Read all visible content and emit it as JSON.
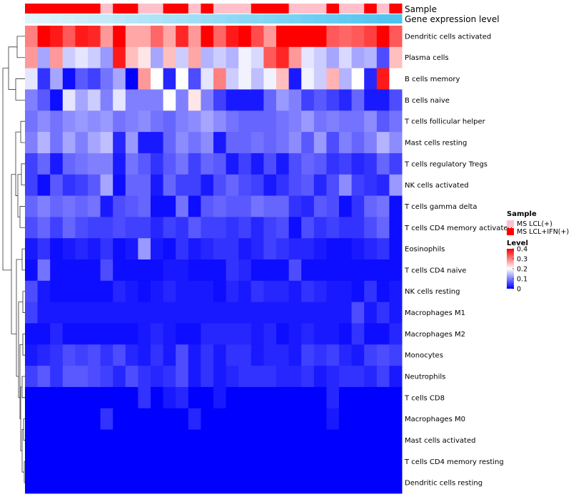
{
  "chart_data": {
    "type": "heatmap",
    "title": "",
    "rows": [
      "Dendritic cells activated",
      "Plasma cells",
      "B cells memory",
      "B cells naive",
      "T cells follicular helper",
      "Mast cells resting",
      "T cells regulatory  Tregs",
      "NK cells activated",
      "T cells gamma delta",
      "T cells CD4 memory activated",
      "Eosinophils",
      "T cells CD4 naive",
      "NK cells resting",
      "Macrophages M1",
      "Macrophages M2",
      "Monocytes",
      "Neutrophils",
      "T cells CD8",
      "Macrophages M0",
      "Mast cells activated",
      "T cells CD4 memory resting",
      "Dendritic cells resting"
    ],
    "column_count": 30,
    "column_annotations": [
      {
        "name": "Sample",
        "values": [
          "MS LCL+IFN(+)",
          "MS LCL+IFN(+)",
          "MS LCL+IFN(+)",
          "MS LCL+IFN(+)",
          "MS LCL+IFN(+)",
          "MS LCL+IFN(+)",
          "MS LCL(+)",
          "MS LCL+IFN(+)",
          "MS LCL+IFN(+)",
          "MS LCL(+)",
          "MS LCL(+)",
          "MS LCL+IFN(+)",
          "MS LCL+IFN(+)",
          "MS LCL(+)",
          "MS LCL+IFN(+)",
          "MS LCL(+)",
          "MS LCL(+)",
          "MS LCL(+)",
          "MS LCL+IFN(+)",
          "MS LCL+IFN(+)",
          "MS LCL+IFN(+)",
          "MS LCL(+)",
          "MS LCL(+)",
          "MS LCL(+)",
          "MS LCL+IFN(+)",
          "MS LCL(+)",
          "MS LCL(+)",
          "MS LCL+IFN(+)",
          "MS LCL(+)",
          "MS LCL+IFN(+)"
        ]
      },
      {
        "name": "Gene expression level",
        "values": [
          0.0,
          0.03,
          0.07,
          0.1,
          0.14,
          0.17,
          0.21,
          0.24,
          0.28,
          0.31,
          0.34,
          0.38,
          0.41,
          0.45,
          0.48,
          0.52,
          0.55,
          0.59,
          0.62,
          0.66,
          0.69,
          0.72,
          0.76,
          0.79,
          0.83,
          0.86,
          0.9,
          0.93,
          0.97,
          1.0
        ]
      }
    ],
    "values": [
      [
        0.3,
        0.4,
        0.38,
        0.33,
        0.38,
        0.37,
        0.28,
        0.4,
        0.27,
        0.27,
        0.32,
        0.27,
        0.37,
        0.28,
        0.4,
        0.32,
        0.38,
        0.4,
        0.34,
        0.28,
        0.4,
        0.4,
        0.4,
        0.4,
        0.33,
        0.32,
        0.33,
        0.35,
        0.4,
        0.33
      ],
      [
        0.28,
        0.13,
        0.28,
        0.16,
        0.18,
        0.16,
        0.12,
        0.38,
        0.25,
        0.22,
        0.13,
        0.25,
        0.16,
        0.27,
        0.14,
        0.16,
        0.14,
        0.19,
        0.17,
        0.33,
        0.37,
        0.28,
        0.18,
        0.16,
        0.13,
        0.17,
        0.13,
        0.14,
        0.06,
        0.25
      ],
      [
        0.18,
        0.04,
        0.13,
        0.01,
        0.07,
        0.05,
        0.09,
        0.13,
        0.0,
        0.28,
        0.2,
        0.03,
        0.2,
        0.06,
        0.18,
        0.3,
        0.16,
        0.19,
        0.15,
        0.19,
        0.25,
        0.02,
        0.19,
        0.16,
        0.26,
        0.14,
        0.2,
        0.03,
        0.38,
        0.2
      ],
      [
        0.1,
        0.07,
        0.01,
        0.18,
        0.13,
        0.16,
        0.1,
        0.18,
        0.1,
        0.1,
        0.1,
        0.2,
        0.1,
        0.22,
        0.1,
        0.05,
        0.02,
        0.02,
        0.02,
        0.08,
        0.12,
        0.1,
        0.05,
        0.07,
        0.05,
        0.03,
        0.08,
        0.02,
        0.02,
        0.06
      ],
      [
        0.09,
        0.11,
        0.09,
        0.11,
        0.12,
        0.11,
        0.12,
        0.09,
        0.1,
        0.11,
        0.09,
        0.08,
        0.1,
        0.11,
        0.13,
        0.11,
        0.09,
        0.08,
        0.08,
        0.08,
        0.09,
        0.1,
        0.12,
        0.09,
        0.1,
        0.09,
        0.09,
        0.11,
        0.07,
        0.09
      ],
      [
        0.1,
        0.14,
        0.09,
        0.13,
        0.1,
        0.13,
        0.15,
        0.03,
        0.12,
        0.02,
        0.02,
        0.08,
        0.11,
        0.09,
        0.11,
        0.02,
        0.08,
        0.08,
        0.09,
        0.08,
        0.09,
        0.11,
        0.07,
        0.12,
        0.06,
        0.1,
        0.08,
        0.1,
        0.14,
        0.11
      ],
      [
        0.05,
        0.08,
        0.02,
        0.08,
        0.09,
        0.1,
        0.1,
        0.02,
        0.09,
        0.07,
        0.04,
        0.07,
        0.09,
        0.05,
        0.08,
        0.07,
        0.02,
        0.05,
        0.02,
        0.06,
        0.02,
        0.06,
        0.08,
        0.07,
        0.04,
        0.05,
        0.03,
        0.04,
        0.08,
        0.05
      ],
      [
        0.05,
        0.01,
        0.07,
        0.04,
        0.05,
        0.07,
        0.13,
        0.01,
        0.08,
        0.08,
        0.02,
        0.08,
        0.05,
        0.05,
        0.02,
        0.06,
        0.08,
        0.06,
        0.05,
        0.02,
        0.04,
        0.06,
        0.07,
        0.03,
        0.06,
        0.11,
        0.05,
        0.04,
        0.03,
        0.12
      ],
      [
        0.08,
        0.1,
        0.08,
        0.09,
        0.08,
        0.09,
        0.02,
        0.06,
        0.07,
        0.08,
        0.01,
        0.01,
        0.09,
        0.01,
        0.07,
        0.08,
        0.07,
        0.07,
        0.09,
        0.08,
        0.08,
        0.04,
        0.03,
        0.07,
        0.06,
        0.01,
        0.04,
        0.08,
        0.09,
        0.01
      ],
      [
        0.06,
        0.08,
        0.05,
        0.08,
        0.06,
        0.05,
        0.05,
        0.06,
        0.05,
        0.05,
        0.03,
        0.05,
        0.04,
        0.07,
        0.05,
        0.05,
        0.04,
        0.05,
        0.03,
        0.05,
        0.06,
        0.01,
        0.06,
        0.04,
        0.05,
        0.04,
        0.04,
        0.06,
        0.08,
        0.01
      ],
      [
        0.02,
        0.04,
        0.01,
        0.02,
        0.03,
        0.02,
        0.04,
        0.01,
        0.02,
        0.12,
        0.02,
        0.01,
        0.04,
        0.02,
        0.03,
        0.04,
        0.04,
        0.02,
        0.03,
        0.05,
        0.04,
        0.03,
        0.03,
        0.02,
        0.01,
        0.01,
        0.02,
        0.03,
        0.04,
        0.01
      ],
      [
        0.01,
        0.09,
        0.01,
        0.01,
        0.01,
        0.01,
        0.06,
        0.01,
        0.01,
        0.01,
        0.01,
        0.02,
        0.02,
        0.01,
        0.01,
        0.01,
        0.04,
        0.03,
        0.01,
        0.01,
        0.01,
        0.06,
        0.01,
        0.01,
        0.01,
        0.01,
        0.01,
        0.01,
        0.01,
        0.01
      ],
      [
        0.06,
        0.02,
        0.01,
        0.01,
        0.01,
        0.01,
        0.01,
        0.03,
        0.02,
        0.01,
        0.02,
        0.03,
        0.02,
        0.02,
        0.02,
        0.01,
        0.03,
        0.02,
        0.04,
        0.03,
        0.03,
        0.02,
        0.04,
        0.03,
        0.02,
        0.02,
        0.01,
        0.04,
        0.01,
        0.02
      ],
      [
        0.05,
        0.02,
        0.02,
        0.02,
        0.02,
        0.02,
        0.02,
        0.02,
        0.02,
        0.02,
        0.02,
        0.02,
        0.02,
        0.02,
        0.02,
        0.02,
        0.02,
        0.02,
        0.02,
        0.02,
        0.02,
        0.02,
        0.02,
        0.02,
        0.02,
        0.02,
        0.06,
        0.02,
        0.04,
        0.02
      ],
      [
        0.01,
        0.01,
        0.03,
        0.01,
        0.01,
        0.01,
        0.01,
        0.01,
        0.01,
        0.02,
        0.03,
        0.02,
        0.01,
        0.01,
        0.03,
        0.03,
        0.03,
        0.03,
        0.02,
        0.03,
        0.01,
        0.02,
        0.03,
        0.02,
        0.02,
        0.01,
        0.04,
        0.01,
        0.01,
        0.03
      ],
      [
        0.02,
        0.03,
        0.04,
        0.06,
        0.05,
        0.06,
        0.04,
        0.06,
        0.03,
        0.02,
        0.04,
        0.02,
        0.06,
        0.02,
        0.04,
        0.02,
        0.04,
        0.04,
        0.02,
        0.03,
        0.03,
        0.02,
        0.05,
        0.04,
        0.05,
        0.03,
        0.02,
        0.05,
        0.06,
        0.05
      ],
      [
        0.05,
        0.07,
        0.04,
        0.07,
        0.07,
        0.06,
        0.05,
        0.03,
        0.06,
        0.04,
        0.03,
        0.04,
        0.06,
        0.02,
        0.04,
        0.02,
        0.03,
        0.04,
        0.04,
        0.04,
        0.03,
        0.03,
        0.04,
        0.02,
        0.03,
        0.04,
        0.04,
        0.03,
        0.05,
        0.02
      ],
      [
        0.0,
        0.0,
        0.0,
        0.0,
        0.0,
        0.0,
        0.0,
        0.0,
        0.0,
        0.04,
        0.0,
        0.02,
        0.03,
        0.0,
        0.0,
        0.02,
        0.0,
        0.0,
        0.0,
        0.0,
        0.0,
        0.0,
        0.0,
        0.0,
        0.03,
        0.0,
        0.0,
        0.0,
        0.0,
        0.0
      ],
      [
        0.0,
        0.0,
        0.0,
        0.0,
        0.0,
        0.0,
        0.04,
        0.0,
        0.0,
        0.0,
        0.0,
        0.0,
        0.0,
        0.03,
        0.0,
        0.0,
        0.0,
        0.0,
        0.0,
        0.0,
        0.0,
        0.0,
        0.0,
        0.0,
        0.02,
        0.0,
        0.0,
        0.0,
        0.0,
        0.0
      ],
      [
        0.0,
        0.0,
        0.0,
        0.0,
        0.0,
        0.0,
        0.0,
        0.0,
        0.0,
        0.0,
        0.0,
        0.0,
        0.0,
        0.0,
        0.0,
        0.0,
        0.0,
        0.0,
        0.0,
        0.0,
        0.0,
        0.0,
        0.0,
        0.0,
        0.0,
        0.0,
        0.0,
        0.0,
        0.0,
        0.0
      ],
      [
        0.0,
        0.0,
        0.0,
        0.0,
        0.0,
        0.0,
        0.0,
        0.0,
        0.0,
        0.0,
        0.0,
        0.0,
        0.0,
        0.0,
        0.0,
        0.0,
        0.0,
        0.0,
        0.0,
        0.0,
        0.0,
        0.0,
        0.0,
        0.0,
        0.0,
        0.0,
        0.0,
        0.0,
        0.0,
        0.0
      ],
      [
        0.0,
        0.0,
        0.0,
        0.0,
        0.0,
        0.0,
        0.0,
        0.0,
        0.0,
        0.0,
        0.0,
        0.0,
        0.0,
        0.0,
        0.0,
        0.0,
        0.0,
        0.0,
        0.0,
        0.0,
        0.0,
        0.0,
        0.0,
        0.0,
        0.0,
        0.0,
        0.0,
        0.0,
        0.0,
        0.0
      ]
    ],
    "row_dendrogram": true,
    "legends": {
      "sample": {
        "title": "Sample",
        "entries": [
          {
            "label": "MS LCL(+)",
            "color": "#FFC0CB"
          },
          {
            "label": "MS LCL+IFN(+)",
            "color": "#FF0000"
          }
        ]
      },
      "level": {
        "title": "Level",
        "range": [
          0,
          0.4
        ],
        "ticks": [
          {
            "value": 0.4,
            "label": "0.4"
          },
          {
            "value": 0.3,
            "label": "0.3"
          },
          {
            "value": 0.2,
            "label": "0.2"
          },
          {
            "value": 0.1,
            "label": "0.1"
          },
          {
            "value": 0.0,
            "label": "0"
          }
        ],
        "colors": {
          "low": "#0000FF",
          "mid": "#FFFFFF",
          "high": "#FF0000"
        }
      }
    },
    "annotation_colors": {
      "expr_low": "#E0F4FB",
      "expr_high": "#4FC3F0"
    }
  }
}
